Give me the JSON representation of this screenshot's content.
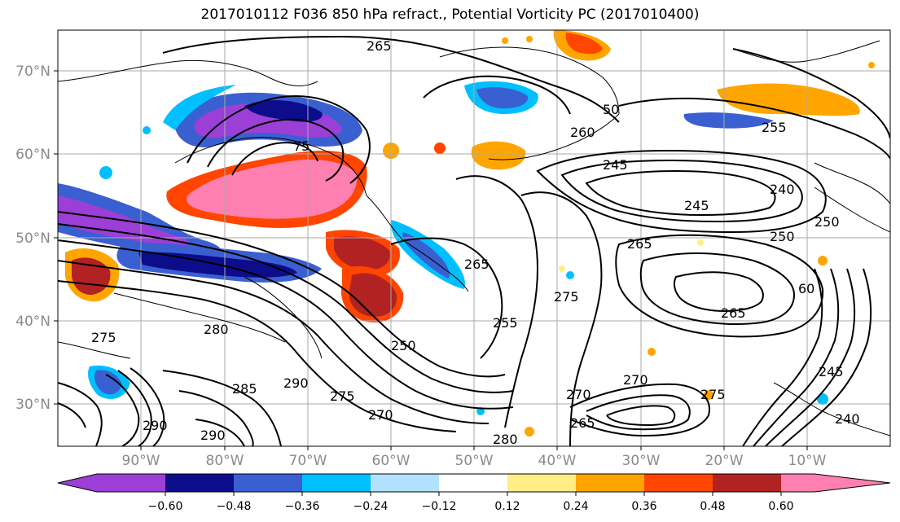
{
  "title": "2017010112 F036 850 hPa refract., Potential Vorticity PC (2017010400)",
  "map": {
    "lat_labels": [
      "70°N",
      "60°N",
      "50°N",
      "40°N",
      "30°N"
    ],
    "lon_labels": [
      "90°W",
      "80°W",
      "70°W",
      "60°W",
      "50°W",
      "40°W",
      "30°W",
      "20°W",
      "10°W"
    ],
    "contour_labels": [
      "265",
      "260",
      "255",
      "245",
      "240",
      "250",
      "265",
      "275",
      "265",
      "255",
      "250",
      "280",
      "275",
      "290",
      "285",
      "290",
      "275",
      "270",
      "270",
      "270",
      "265",
      "280",
      "245",
      "245",
      "240",
      "250",
      "265",
      "275",
      "60",
      "75",
      "50",
      "290"
    ]
  },
  "colorbar": {
    "ticks": [
      "−0.60",
      "−0.48",
      "−0.36",
      "−0.24",
      "−0.12",
      "0.12",
      "0.24",
      "0.36",
      "0.48",
      "0.60"
    ],
    "colors": [
      "#9b3fd6",
      "#0d0d8c",
      "#3a5fd0",
      "#00bfff",
      "#b0e2ff",
      "#ffffff",
      "#ffee88",
      "#ffa500",
      "#ff4500",
      "#b22222",
      "#ff7fb0"
    ]
  }
}
